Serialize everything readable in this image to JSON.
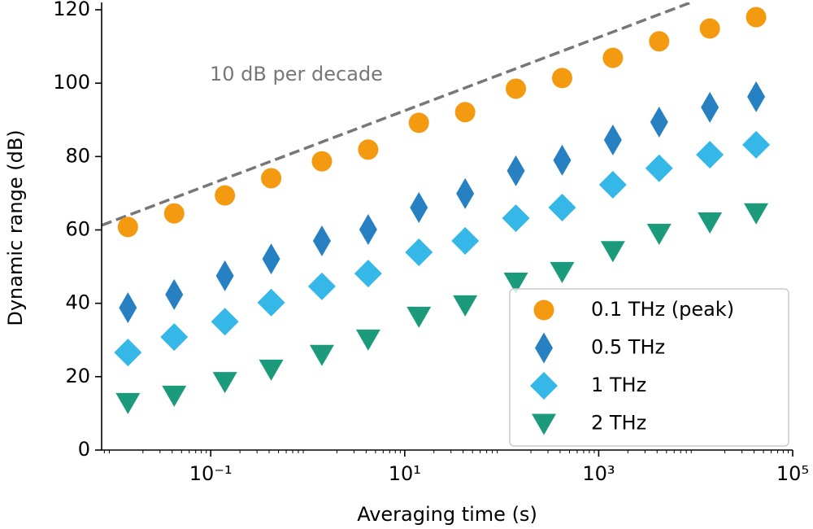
{
  "chart_data": {
    "type": "scatter",
    "xlabel": "Averaging time (s)",
    "ylabel": "Dynamic range (dB)",
    "x": [
      0.014,
      0.042,
      0.14,
      0.42,
      1.4,
      4.2,
      14,
      42,
      140,
      420,
      1400,
      4200,
      14000,
      42000
    ],
    "xscale": "log",
    "xlim": [
      0.0075,
      100000
    ],
    "xticks": [
      {
        "value": 0.1,
        "label": "10⁻¹"
      },
      {
        "value": 10,
        "label": "10¹"
      },
      {
        "value": 1000,
        "label": "10³"
      },
      {
        "value": 100000,
        "label": "10⁵"
      }
    ],
    "ylim": [
      0,
      122
    ],
    "yticks": [
      0,
      20,
      40,
      60,
      80,
      100,
      120
    ],
    "legend": "lower right",
    "series": [
      {
        "name": "0.1 THz (peak)",
        "color": "#f39a11",
        "marker": "circle",
        "values": [
          60.8,
          64.5,
          69.4,
          74.1,
          78.7,
          81.9,
          89.2,
          92.1,
          98.5,
          101.4,
          106.9,
          111.4,
          114.9,
          118.0
        ]
      },
      {
        "name": "0.5 THz",
        "color": "#2680c2",
        "marker": "thin_diamond",
        "values": [
          38.8,
          42.4,
          47.5,
          52.1,
          57.0,
          60.1,
          66.1,
          69.9,
          76.1,
          79.0,
          84.5,
          89.4,
          93.4,
          96.3
        ]
      },
      {
        "name": "1 THz",
        "color": "#35b8e8",
        "marker": "diamond",
        "values": [
          26.6,
          30.8,
          35.0,
          40.2,
          44.6,
          48.1,
          53.9,
          57.0,
          63.2,
          66.1,
          72.3,
          76.8,
          80.5,
          83.2
        ]
      },
      {
        "name": "2 THz",
        "color": "#1b9b7b",
        "marker": "triangle_down",
        "values": [
          12.9,
          14.9,
          18.6,
          22.0,
          26.0,
          30.2,
          36.4,
          39.5,
          45.7,
          48.6,
          54.3,
          59.0,
          62.1,
          64.6
        ]
      }
    ],
    "reference_line": {
      "label": "10 dB per decade",
      "slope_per_decade": 10,
      "intercept": 82.5,
      "color": "#777777"
    }
  }
}
